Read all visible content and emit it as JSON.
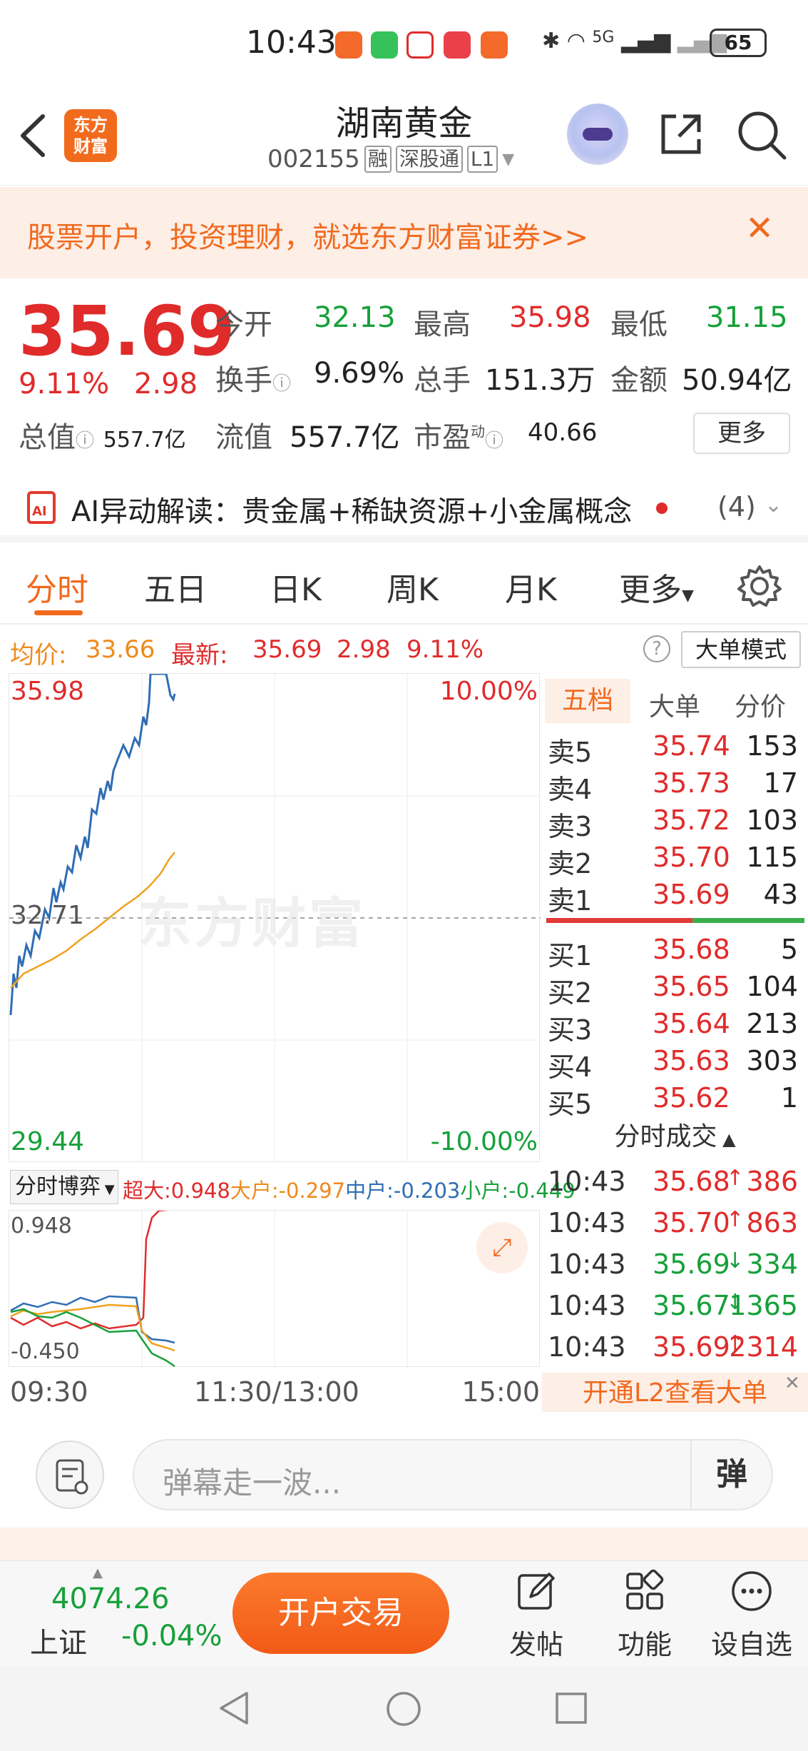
{
  "status_bar": {
    "time": "10:43",
    "battery": "65",
    "network": "5G"
  },
  "header": {
    "logo_text": "东方\n财富",
    "title": "湖南黄金",
    "code": "002155",
    "tags": [
      "融",
      "深股通",
      "L1"
    ]
  },
  "promo": {
    "text": "股票开户，投资理财，就选东方财富证券>>"
  },
  "quote": {
    "price": "35.69",
    "change_pct": "9.11%",
    "change": "2.98",
    "open_label": "今开",
    "open": "32.13",
    "high_label": "最高",
    "high": "35.98",
    "low_label": "最低",
    "low": "31.15",
    "turnover_label": "换手",
    "turnover": "9.69%",
    "volume_label": "总手",
    "volume": "151.3万",
    "amount_label": "金额",
    "amount": "50.94亿",
    "mktcap_label": "总值",
    "mktcap": "557.7亿",
    "float_label": "流值",
    "float": "557.7亿",
    "pe_label": "市盈",
    "pe_sup": "动",
    "pe": "40.66",
    "more_label": "更多"
  },
  "ai": {
    "text": "AI异动解读：贵金属+稀缺资源+小金属概念",
    "count": "(4)"
  },
  "tabs": [
    "分时",
    "五日",
    "日K",
    "周K",
    "月K",
    "更多"
  ],
  "info": {
    "avg_label": "均价:",
    "avg": "33.66",
    "last_label": "最新:",
    "last": "35.69",
    "chg": "2.98",
    "pct": "9.11%",
    "big_mode": "大单模式"
  },
  "chart_labels": {
    "top_price": "35.98",
    "top_pct": "10.00%",
    "mid_price": "32.71",
    "bottom_price": "29.44",
    "bottom_pct": "-10.00%",
    "watermark": "东方财富"
  },
  "fund_flow": {
    "select": "分时博弈",
    "super_label": "超大:",
    "super": "0.948",
    "big_label": "大户:",
    "big": "-0.297",
    "mid_label": "中户:",
    "mid": "-0.203",
    "small_label": "小户:",
    "small": "-0.449",
    "axis_top": "0.948",
    "axis_bottom": "-0.450"
  },
  "time_axis": [
    "09:30",
    "11:30/13:00",
    "15:00"
  ],
  "orderbook": {
    "tabs": [
      "五档",
      "大单",
      "分价"
    ],
    "asks": [
      {
        "label": "卖5",
        "price": "35.74",
        "vol": "153"
      },
      {
        "label": "卖4",
        "price": "35.73",
        "vol": "17"
      },
      {
        "label": "卖3",
        "price": "35.72",
        "vol": "103"
      },
      {
        "label": "卖2",
        "price": "35.70",
        "vol": "115"
      },
      {
        "label": "卖1",
        "price": "35.69",
        "vol": "43"
      }
    ],
    "bids": [
      {
        "label": "买1",
        "price": "35.68",
        "vol": "5"
      },
      {
        "label": "买2",
        "price": "35.65",
        "vol": "104"
      },
      {
        "label": "买3",
        "price": "35.64",
        "vol": "213"
      },
      {
        "label": "买4",
        "price": "35.63",
        "vol": "303"
      },
      {
        "label": "买5",
        "price": "35.62",
        "vol": "1"
      }
    ],
    "trades_title": "分时成交",
    "trades": [
      {
        "time": "10:43",
        "price": "35.68",
        "dir": "↑",
        "vol": "386",
        "color": "#e02b2b"
      },
      {
        "time": "10:43",
        "price": "35.70",
        "dir": "↑",
        "vol": "863",
        "color": "#e02b2b"
      },
      {
        "time": "10:43",
        "price": "35.69",
        "dir": "↓",
        "vol": "334",
        "color": "#16a03a"
      },
      {
        "time": "10:43",
        "price": "35.67",
        "dir": "↓",
        "vol": "1365",
        "color": "#16a03a"
      },
      {
        "time": "10:43",
        "price": "35.69",
        "dir": "↑",
        "vol": "2314",
        "color": "#e02b2b"
      }
    ],
    "l2_label": "开通L2查看大单"
  },
  "comment": {
    "placeholder": "弹幕走一波...",
    "dan_label": "弹"
  },
  "bottom_nav": {
    "index_value": "4074.26",
    "index_name": "上证",
    "index_change": "-0.04%",
    "trade_label": "开户交易",
    "items": [
      "发帖",
      "功能",
      "设自选"
    ]
  }
}
